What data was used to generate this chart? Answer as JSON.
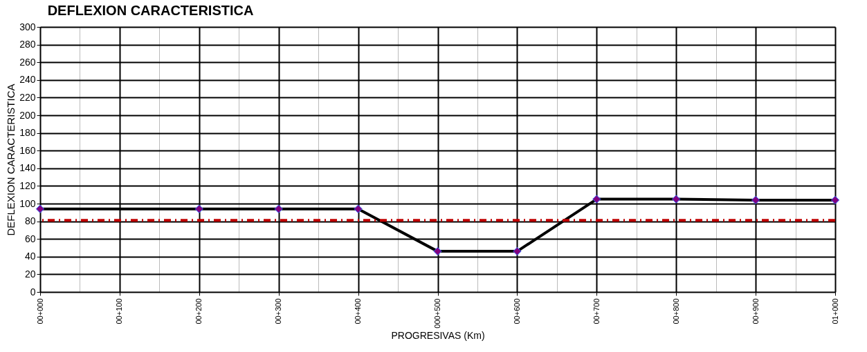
{
  "chart_data": {
    "type": "line",
    "title": "DEFLEXION CARACTERISTICA",
    "xlabel": "PROGRESIVAS (Km)",
    "ylabel": "DEFLEXION CARACTERISTICA",
    "categories": [
      "00+000",
      "00+100",
      "00+200",
      "00+300",
      "00+400",
      "000+500",
      "00+600",
      "00+700",
      "00+800",
      "00+900",
      "01+000"
    ],
    "series": [
      {
        "color": "#000000",
        "values": [
          94,
          null,
          94,
          94,
          94,
          46,
          46,
          105,
          105,
          104,
          104
        ]
      }
    ],
    "ylim": [
      0,
      300
    ],
    "yticks": [
      0,
      20,
      40,
      60,
      80,
      100,
      120,
      140,
      160,
      180,
      200,
      220,
      240,
      260,
      280,
      300
    ],
    "ref_lines": [
      {
        "axis": "y",
        "value": 81,
        "color": "#c00000",
        "line_style": "dashdot"
      }
    ],
    "grid": true,
    "marker": "diamond",
    "line_style": "solid"
  }
}
